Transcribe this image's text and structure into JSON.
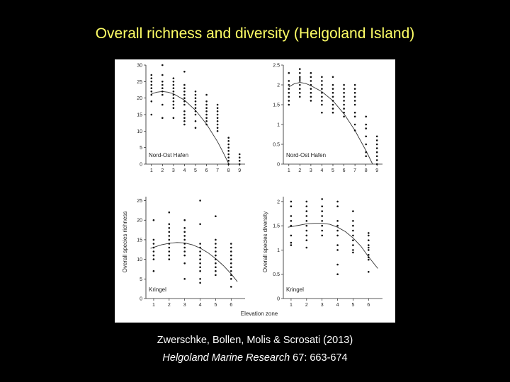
{
  "slide": {
    "title": "Overall richness and diversity (Helgoland Island)",
    "citation_authors": "Zwerschke, Bollen, Molis & Scrosati (2013)",
    "citation_journal": "Helgoland Marine Research",
    "citation_details": " 67: 663-674"
  },
  "colors": {
    "background": "#000000",
    "title": "#ffff66",
    "text": "#ffffff",
    "figure_bg": "#ffffff",
    "ink": "#222222"
  },
  "figure": {
    "xlabel": "Elevation zone",
    "ylabel_left": "Overall species richness",
    "ylabel_right": "Overall species diversity"
  },
  "chart_data": [
    {
      "type": "scatter",
      "title": "Nord-Ost Hafen",
      "metric": "Overall species richness",
      "xlim": [
        0.5,
        9.5
      ],
      "ylim": [
        0,
        30
      ],
      "x_ticks": [
        1,
        2,
        3,
        4,
        5,
        6,
        7,
        8,
        9
      ],
      "y_ticks": [
        0,
        5,
        10,
        15,
        20,
        25,
        30
      ],
      "points": [
        [
          1,
          27
        ],
        [
          1,
          26
        ],
        [
          1,
          25
        ],
        [
          1,
          24
        ],
        [
          1,
          23
        ],
        [
          1,
          22
        ],
        [
          1,
          21
        ],
        [
          1,
          19
        ],
        [
          1,
          15
        ],
        [
          2,
          30
        ],
        [
          2,
          27
        ],
        [
          2,
          25
        ],
        [
          2,
          24
        ],
        [
          2,
          23
        ],
        [
          2,
          22
        ],
        [
          2,
          21
        ],
        [
          2,
          18
        ],
        [
          2,
          14
        ],
        [
          3,
          26
        ],
        [
          3,
          25
        ],
        [
          3,
          24
        ],
        [
          3,
          23
        ],
        [
          3,
          22
        ],
        [
          3,
          21
        ],
        [
          3,
          20
        ],
        [
          3,
          19
        ],
        [
          3,
          18
        ],
        [
          3,
          17
        ],
        [
          3,
          14
        ],
        [
          4,
          28
        ],
        [
          4,
          24
        ],
        [
          4,
          23
        ],
        [
          4,
          22
        ],
        [
          4,
          21
        ],
        [
          4,
          20
        ],
        [
          4,
          19
        ],
        [
          4,
          18
        ],
        [
          4,
          16
        ],
        [
          4,
          15
        ],
        [
          4,
          14
        ],
        [
          4,
          13
        ],
        [
          4,
          12
        ],
        [
          5,
          22
        ],
        [
          5,
          21
        ],
        [
          5,
          20
        ],
        [
          5,
          19
        ],
        [
          5,
          18
        ],
        [
          5,
          17
        ],
        [
          5,
          16
        ],
        [
          5,
          15
        ],
        [
          5,
          13
        ],
        [
          5,
          11
        ],
        [
          6,
          21
        ],
        [
          6,
          19
        ],
        [
          6,
          18
        ],
        [
          6,
          17
        ],
        [
          6,
          16
        ],
        [
          6,
          15
        ],
        [
          6,
          14
        ],
        [
          6,
          13
        ],
        [
          6,
          12
        ],
        [
          7,
          18
        ],
        [
          7,
          17
        ],
        [
          7,
          16
        ],
        [
          7,
          15
        ],
        [
          7,
          14
        ],
        [
          7,
          13
        ],
        [
          7,
          12
        ],
        [
          7,
          11
        ],
        [
          7,
          10
        ],
        [
          8,
          8
        ],
        [
          8,
          7
        ],
        [
          8,
          6
        ],
        [
          8,
          5
        ],
        [
          8,
          4
        ],
        [
          8,
          3
        ],
        [
          8,
          2
        ],
        [
          8,
          1
        ],
        [
          8,
          0
        ],
        [
          9,
          3
        ],
        [
          9,
          2
        ],
        [
          9,
          1
        ],
        [
          9,
          0
        ]
      ],
      "fit": [
        [
          1,
          21.3
        ],
        [
          1.5,
          21.8
        ],
        [
          2,
          22
        ],
        [
          2.5,
          21.8
        ],
        [
          3,
          21.3
        ],
        [
          4,
          19.4
        ],
        [
          5,
          16.3
        ],
        [
          6,
          12.1
        ],
        [
          7,
          6.8
        ],
        [
          7.5,
          3.6
        ],
        [
          8,
          0.2
        ]
      ]
    },
    {
      "type": "scatter",
      "title": "Nord-Ost Hafen",
      "metric": "Overall species diversity",
      "xlim": [
        0.5,
        9.5
      ],
      "ylim": [
        0,
        2.5
      ],
      "x_ticks": [
        1,
        2,
        3,
        4,
        5,
        6,
        7,
        8,
        9
      ],
      "y_ticks": [
        0,
        0.5,
        1,
        1.5,
        2,
        2.5
      ],
      "y_tick_labels": [
        "0",
        "0.5",
        "1",
        "1.5",
        "2",
        "2.5"
      ],
      "points": [
        [
          1,
          2.3
        ],
        [
          1,
          2.1
        ],
        [
          1,
          2.0
        ],
        [
          1,
          1.9
        ],
        [
          1,
          1.8
        ],
        [
          1,
          1.7
        ],
        [
          1,
          1.6
        ],
        [
          1,
          1.5
        ],
        [
          2,
          2.4
        ],
        [
          2,
          2.3
        ],
        [
          2,
          2.2
        ],
        [
          2,
          2.15
        ],
        [
          2,
          2.1
        ],
        [
          2,
          2.0
        ],
        [
          2,
          1.9
        ],
        [
          2,
          1.8
        ],
        [
          2,
          1.7
        ],
        [
          3,
          2.3
        ],
        [
          3,
          2.2
        ],
        [
          3,
          2.1
        ],
        [
          3,
          2.0
        ],
        [
          3,
          1.9
        ],
        [
          3,
          1.8
        ],
        [
          3,
          1.7
        ],
        [
          3,
          1.6
        ],
        [
          4,
          2.2
        ],
        [
          4,
          2.1
        ],
        [
          4,
          2.0
        ],
        [
          4,
          1.9
        ],
        [
          4,
          1.8
        ],
        [
          4,
          1.7
        ],
        [
          4,
          1.6
        ],
        [
          4,
          1.5
        ],
        [
          4,
          1.3
        ],
        [
          5,
          2.2
        ],
        [
          5,
          2.0
        ],
        [
          5,
          1.9
        ],
        [
          5,
          1.8
        ],
        [
          5,
          1.7
        ],
        [
          5,
          1.6
        ],
        [
          5,
          1.5
        ],
        [
          5,
          1.4
        ],
        [
          5,
          1.3
        ],
        [
          6,
          2.0
        ],
        [
          6,
          1.9
        ],
        [
          6,
          1.8
        ],
        [
          6,
          1.7
        ],
        [
          6,
          1.6
        ],
        [
          6,
          1.5
        ],
        [
          6,
          1.4
        ],
        [
          6,
          1.3
        ],
        [
          6,
          1.2
        ],
        [
          7,
          2.0
        ],
        [
          7,
          1.9
        ],
        [
          7,
          1.8
        ],
        [
          7,
          1.7
        ],
        [
          7,
          1.6
        ],
        [
          7,
          1.5
        ],
        [
          7,
          1.3
        ],
        [
          7,
          1.2
        ],
        [
          7,
          1.0
        ],
        [
          7,
          0.85
        ],
        [
          8,
          1.2
        ],
        [
          8,
          1.0
        ],
        [
          8,
          0.9
        ],
        [
          8,
          0.7
        ],
        [
          8,
          0.5
        ],
        [
          8,
          0.3
        ],
        [
          8,
          0.2
        ],
        [
          9,
          0.7
        ],
        [
          9,
          0.6
        ],
        [
          9,
          0.5
        ],
        [
          9,
          0.4
        ],
        [
          9,
          0.3
        ],
        [
          9,
          0.2
        ],
        [
          9,
          0.1
        ],
        [
          9,
          0.0
        ]
      ],
      "fit": [
        [
          1,
          1.95
        ],
        [
          1.5,
          2.03
        ],
        [
          2,
          2.06
        ],
        [
          2.5,
          2.04
        ],
        [
          3,
          1.98
        ],
        [
          4,
          1.83
        ],
        [
          5,
          1.6
        ],
        [
          6,
          1.27
        ],
        [
          7,
          0.85
        ],
        [
          8,
          0.34
        ],
        [
          8.6,
          0.0
        ]
      ]
    },
    {
      "type": "scatter",
      "title": "Kringel",
      "metric": "Overall species richness",
      "xlim": [
        0.5,
        6.9
      ],
      "ylim": [
        0,
        26
      ],
      "x_ticks": [
        1,
        2,
        3,
        4,
        5,
        6
      ],
      "y_ticks": [
        0,
        5,
        10,
        15,
        20,
        25
      ],
      "points": [
        [
          1,
          20
        ],
        [
          1,
          15
        ],
        [
          1,
          14
        ],
        [
          1,
          13
        ],
        [
          1,
          12
        ],
        [
          1,
          11
        ],
        [
          1,
          10
        ],
        [
          1,
          7
        ],
        [
          2,
          22
        ],
        [
          2,
          19
        ],
        [
          2,
          18
        ],
        [
          2,
          17
        ],
        [
          2,
          16
        ],
        [
          2,
          15
        ],
        [
          2,
          14
        ],
        [
          2,
          13
        ],
        [
          2,
          12
        ],
        [
          2,
          11
        ],
        [
          2,
          10
        ],
        [
          3,
          20
        ],
        [
          3,
          18
        ],
        [
          3,
          17
        ],
        [
          3,
          16
        ],
        [
          3,
          15
        ],
        [
          3,
          14
        ],
        [
          3,
          13
        ],
        [
          3,
          12
        ],
        [
          3,
          11
        ],
        [
          3,
          9
        ],
        [
          3,
          5
        ],
        [
          4,
          25
        ],
        [
          4,
          19
        ],
        [
          4,
          14
        ],
        [
          4,
          13
        ],
        [
          4,
          12
        ],
        [
          4,
          11
        ],
        [
          4,
          10
        ],
        [
          4,
          9
        ],
        [
          4,
          8
        ],
        [
          4,
          7
        ],
        [
          4,
          5
        ],
        [
          4,
          4
        ],
        [
          5,
          21
        ],
        [
          5,
          15
        ],
        [
          5,
          14
        ],
        [
          5,
          13
        ],
        [
          5,
          12
        ],
        [
          5,
          11
        ],
        [
          5,
          10
        ],
        [
          5,
          9
        ],
        [
          5,
          8
        ],
        [
          5,
          7
        ],
        [
          5,
          6
        ],
        [
          6,
          14
        ],
        [
          6,
          13
        ],
        [
          6,
          12
        ],
        [
          6,
          11
        ],
        [
          6,
          10
        ],
        [
          6,
          9
        ],
        [
          6,
          8
        ],
        [
          6,
          7
        ],
        [
          6,
          6
        ],
        [
          6,
          5
        ],
        [
          6,
          3
        ]
      ],
      "fit": [
        [
          0.8,
          12.8
        ],
        [
          1.5,
          13.7
        ],
        [
          2,
          14.1
        ],
        [
          2.5,
          14.3
        ],
        [
          3,
          14.2
        ],
        [
          3.5,
          13.7
        ],
        [
          4,
          12.9
        ],
        [
          4.5,
          11.7
        ],
        [
          5,
          10.2
        ],
        [
          5.5,
          8.4
        ],
        [
          6,
          6.3
        ],
        [
          6.4,
          4.3
        ]
      ]
    },
    {
      "type": "scatter",
      "title": "Kringel",
      "metric": "Overall species diversity",
      "xlim": [
        0.5,
        6.9
      ],
      "ylim": [
        0,
        2.1
      ],
      "x_ticks": [
        1,
        2,
        3,
        4,
        5,
        6
      ],
      "y_ticks": [
        0,
        0.5,
        1,
        1.5,
        2
      ],
      "y_tick_labels": [
        "0",
        "0.5",
        "1",
        "1.5",
        "2"
      ],
      "points": [
        [
          1,
          2.0
        ],
        [
          1,
          1.9
        ],
        [
          1,
          1.7
        ],
        [
          1,
          1.6
        ],
        [
          1,
          1.5
        ],
        [
          1,
          1.3
        ],
        [
          1,
          1.15
        ],
        [
          1,
          1.1
        ],
        [
          2,
          2.0
        ],
        [
          2,
          1.9
        ],
        [
          2,
          1.8
        ],
        [
          2,
          1.7
        ],
        [
          2,
          1.6
        ],
        [
          2,
          1.5
        ],
        [
          2,
          1.4
        ],
        [
          2,
          1.3
        ],
        [
          2,
          1.2
        ],
        [
          2,
          1.05
        ],
        [
          3,
          2.05
        ],
        [
          3,
          1.9
        ],
        [
          3,
          1.8
        ],
        [
          3,
          1.7
        ],
        [
          3,
          1.6
        ],
        [
          3,
          1.5
        ],
        [
          3,
          1.4
        ],
        [
          3,
          1.3
        ],
        [
          4,
          2.0
        ],
        [
          4,
          1.9
        ],
        [
          4,
          1.6
        ],
        [
          4,
          1.5
        ],
        [
          4,
          1.4
        ],
        [
          4,
          1.3
        ],
        [
          4,
          1.1
        ],
        [
          4,
          1.0
        ],
        [
          4,
          0.7
        ],
        [
          4,
          0.5
        ],
        [
          5,
          1.8
        ],
        [
          5,
          1.6
        ],
        [
          5,
          1.5
        ],
        [
          5,
          1.4
        ],
        [
          5,
          1.3
        ],
        [
          5,
          1.2
        ],
        [
          5,
          1.1
        ],
        [
          5,
          1.0
        ],
        [
          5,
          0.95
        ],
        [
          6,
          1.35
        ],
        [
          6,
          1.3
        ],
        [
          6,
          1.2
        ],
        [
          6,
          1.1
        ],
        [
          6,
          1.05
        ],
        [
          6,
          1.0
        ],
        [
          6,
          0.9
        ],
        [
          6,
          0.85
        ],
        [
          6,
          0.8
        ],
        [
          6,
          0.55
        ]
      ],
      "fit": [
        [
          0.8,
          1.47
        ],
        [
          1.5,
          1.51
        ],
        [
          2,
          1.54
        ],
        [
          2.5,
          1.55
        ],
        [
          3,
          1.55
        ],
        [
          3.5,
          1.53
        ],
        [
          4,
          1.47
        ],
        [
          4.5,
          1.38
        ],
        [
          5,
          1.25
        ],
        [
          5.5,
          1.08
        ],
        [
          6,
          0.86
        ],
        [
          6.6,
          0.62
        ]
      ]
    }
  ]
}
